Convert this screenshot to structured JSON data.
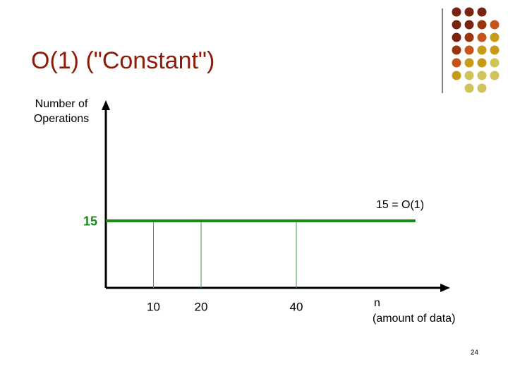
{
  "chart_data": {
    "type": "line",
    "title": "O(1) (\"Constant\")",
    "y_label": [
      "Number of",
      "Operations"
    ],
    "x_label": [
      "n",
      "(amount of data)"
    ],
    "annotation": "15 = O(1)",
    "x": [
      0,
      10,
      20,
      40,
      65
    ],
    "values": [
      15,
      15,
      15,
      15,
      15
    ],
    "color": "#1a8a1a",
    "xlim": [
      0,
      72
    ],
    "xticks": [
      10,
      20,
      40
    ],
    "ylim": [
      0,
      41.5
    ],
    "yticks": [
      15
    ]
  },
  "page_number": "24"
}
